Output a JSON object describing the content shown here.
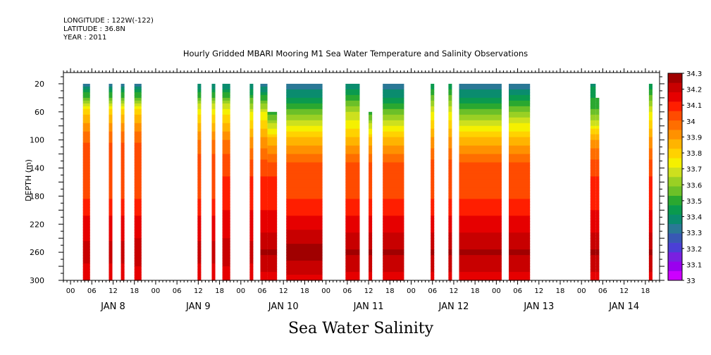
{
  "header": {
    "longitude": "LONGITUDE : 122W(-122)",
    "latitude": "LATITUDE : 36.8N",
    "year": "YEAR : 2011"
  },
  "chart_data": {
    "type": "heatmap",
    "title": "Hourly Gridded MBARI Mooring M1 Sea Water Temperature and Salinity Observations",
    "xlabel": "Sea Water Salinity",
    "ylabel": "DEPTH (m)",
    "x_units": "hours since 2011-01-08 00:00",
    "xlim": [
      -2,
      166
    ],
    "ylim": [
      300,
      4
    ],
    "y_ticks": [
      20,
      60,
      100,
      140,
      180,
      220,
      260,
      300
    ],
    "x_hour_labels": [
      "00",
      "06",
      "12",
      "18",
      "00",
      "06",
      "12",
      "18",
      "00",
      "06",
      "12",
      "18",
      "00",
      "06",
      "12",
      "18",
      "00",
      "06",
      "12",
      "18",
      "00",
      "06",
      "12",
      "18",
      "00",
      "06",
      "12",
      "18"
    ],
    "x_day_labels": [
      "JAN  8",
      "JAN  9",
      "JAN 10",
      "JAN 11",
      "JAN 12",
      "JAN 13",
      "JAN 14"
    ],
    "colorbar": {
      "levels": [
        "33",
        "33.1",
        "33.2",
        "33.3",
        "33.4",
        "33.5",
        "33.6",
        "33.7",
        "33.8",
        "33.9",
        "34",
        "34.1",
        "34.2",
        "34.3"
      ],
      "colors": [
        "#cc00ff",
        "#9a00ee",
        "#7a20e0",
        "#4b3fd6",
        "#3858b4",
        "#2a7896",
        "#0a8c6e",
        "#0a9a4e",
        "#2aa830",
        "#6cc028",
        "#9ad024",
        "#cde01e",
        "#f5f000",
        "#ffd200",
        "#ffb400",
        "#ff9100",
        "#ff6e00",
        "#ff4b00",
        "#ff1e00",
        "#e60000",
        "#c80000",
        "#a00000"
      ]
    },
    "profile_depths": [
      20,
      60,
      100,
      140,
      180,
      220,
      260,
      300
    ],
    "profiles": [
      {
        "start": 3.5,
        "end": 5.5,
        "top": 20,
        "values": [
          33.3,
          33.8,
          34.0,
          34.05,
          34.05,
          34.15,
          34.2,
          34.15
        ]
      },
      {
        "start": 10.8,
        "end": 11.8,
        "top": 20,
        "values": [
          33.3,
          33.8,
          34.0,
          34.05,
          34.05,
          34.15,
          34.2,
          34.15
        ]
      },
      {
        "start": 14.2,
        "end": 15.2,
        "top": 20,
        "values": [
          33.3,
          33.8,
          34.0,
          34.05,
          34.05,
          34.15,
          34.2,
          34.15
        ]
      },
      {
        "start": 18.0,
        "end": 20.0,
        "top": 20,
        "values": [
          33.3,
          33.8,
          34.0,
          34.05,
          34.05,
          34.15,
          34.22,
          34.15
        ]
      },
      {
        "start": 35.8,
        "end": 36.8,
        "top": 20,
        "values": [
          33.35,
          33.75,
          33.95,
          34.05,
          34.05,
          34.15,
          34.2,
          34.15
        ]
      },
      {
        "start": 39.8,
        "end": 40.8,
        "top": 20,
        "values": [
          33.35,
          33.75,
          33.95,
          34.05,
          34.05,
          34.15,
          34.2,
          34.15
        ]
      },
      {
        "start": 42.8,
        "end": 45.0,
        "top": 20,
        "values": [
          33.35,
          33.75,
          33.95,
          34.05,
          34.1,
          34.15,
          34.22,
          34.15
        ]
      },
      {
        "start": 50.5,
        "end": 51.5,
        "top": 20,
        "values": [
          33.35,
          33.7,
          33.9,
          34.05,
          34.1,
          34.15,
          34.2,
          34.15
        ]
      },
      {
        "start": 53.5,
        "end": 55.5,
        "top": 20,
        "values": [
          33.3,
          33.7,
          33.9,
          34.05,
          34.1,
          34.15,
          34.25,
          34.15
        ]
      },
      {
        "start": 55.5,
        "end": 58.2,
        "top": 60,
        "values": [
          33.5,
          33.5,
          33.85,
          34.05,
          34.1,
          34.15,
          34.25,
          34.15
        ]
      },
      {
        "start": 60.8,
        "end": 71.0,
        "top": 20,
        "values": [
          33.3,
          33.55,
          33.85,
          34.05,
          34.05,
          34.15,
          34.28,
          34.15
        ]
      },
      {
        "start": 77.5,
        "end": 81.5,
        "top": 20,
        "values": [
          33.35,
          33.65,
          33.85,
          34.05,
          34.05,
          34.15,
          34.25,
          34.15
        ]
      },
      {
        "start": 84.0,
        "end": 85.0,
        "top": 60,
        "values": [
          33.5,
          33.5,
          33.85,
          34.05,
          34.05,
          34.15,
          34.25,
          34.15
        ]
      },
      {
        "start": 88.0,
        "end": 94.0,
        "top": 20,
        "values": [
          33.3,
          33.55,
          33.85,
          34.05,
          34.05,
          34.15,
          34.25,
          34.15
        ]
      },
      {
        "start": 101.5,
        "end": 102.5,
        "top": 20,
        "values": [
          33.4,
          33.7,
          33.9,
          34.05,
          34.05,
          34.15,
          34.25,
          34.15
        ]
      },
      {
        "start": 106.5,
        "end": 107.5,
        "top": 20,
        "values": [
          33.4,
          33.7,
          33.9,
          34.05,
          34.05,
          34.15,
          34.25,
          34.15
        ]
      },
      {
        "start": 109.5,
        "end": 121.5,
        "top": 20,
        "values": [
          33.3,
          33.55,
          33.85,
          34.05,
          34.05,
          34.15,
          34.25,
          34.15
        ]
      },
      {
        "start": 123.5,
        "end": 129.5,
        "top": 20,
        "values": [
          33.3,
          33.6,
          33.85,
          34.05,
          34.05,
          34.15,
          34.25,
          34.15
        ]
      },
      {
        "start": 146.5,
        "end": 148.0,
        "top": 20,
        "values": [
          33.4,
          33.55,
          33.9,
          34.05,
          34.1,
          34.15,
          34.25,
          34.15
        ]
      },
      {
        "start": 148.0,
        "end": 149.0,
        "top": 40,
        "values": [
          33.4,
          33.55,
          33.9,
          34.05,
          34.1,
          34.15,
          34.25,
          34.15
        ]
      },
      {
        "start": 163.0,
        "end": 164.0,
        "top": 20,
        "values": [
          33.4,
          33.7,
          33.9,
          34.05,
          34.1,
          34.15,
          34.25,
          34.15
        ]
      }
    ]
  }
}
